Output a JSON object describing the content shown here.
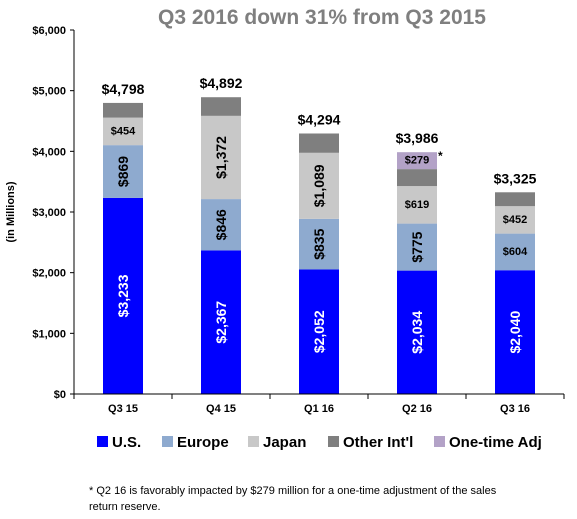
{
  "chart_data": {
    "type": "bar",
    "stacked": true,
    "title": "Q3 2016 down 31% from Q3 2015",
    "ylabel": "(in Millions)",
    "xlabel": "",
    "ylim": [
      0,
      6000
    ],
    "yticks": [
      "$0",
      "$1,000",
      "$2,000",
      "$3,000",
      "$4,000",
      "$5,000",
      "$6,000"
    ],
    "grid": false,
    "legend_position": "bottom",
    "categories": [
      "Q3 15",
      "Q4 15",
      "Q1 16",
      "Q2 16",
      "Q3 16"
    ],
    "series": [
      {
        "name": "U.S.",
        "color": "#0000ff",
        "values": [
          3233,
          2367,
          2052,
          2034,
          2040
        ],
        "labels": [
          "$3,233",
          "$2,367",
          "$2,052",
          "$2,034",
          "$2,040"
        ]
      },
      {
        "name": "Europe",
        "color": "#8eaacf",
        "values": [
          869,
          846,
          835,
          775,
          604
        ],
        "labels": [
          "$869",
          "$846",
          "$835",
          "$775",
          "$604"
        ]
      },
      {
        "name": "Japan",
        "color": "#c8c8c8",
        "values": [
          454,
          1372,
          1089,
          619,
          452
        ],
        "labels": [
          "$454",
          "$1,372",
          "$1,089",
          "$619",
          "$452"
        ]
      },
      {
        "name": "Other Int'l",
        "color": "#7f7f7f",
        "values": [
          242,
          307,
          318,
          279,
          229
        ],
        "labels": [
          "",
          "",
          "",
          "",
          ""
        ]
      },
      {
        "name": "One-time Adj",
        "color": "#b3a2c7",
        "values": [
          0,
          0,
          0,
          279,
          0
        ],
        "labels": [
          "",
          "",
          "",
          "$279",
          ""
        ]
      }
    ],
    "totals": [
      "$4,798",
      "$4,892",
      "$4,294",
      "$3,986",
      "$3,325"
    ],
    "annotation_marker": "*",
    "footnote": "* Q2 16 is favorably impacted by $279 million for a one-time adjustment of the sales return reserve."
  }
}
